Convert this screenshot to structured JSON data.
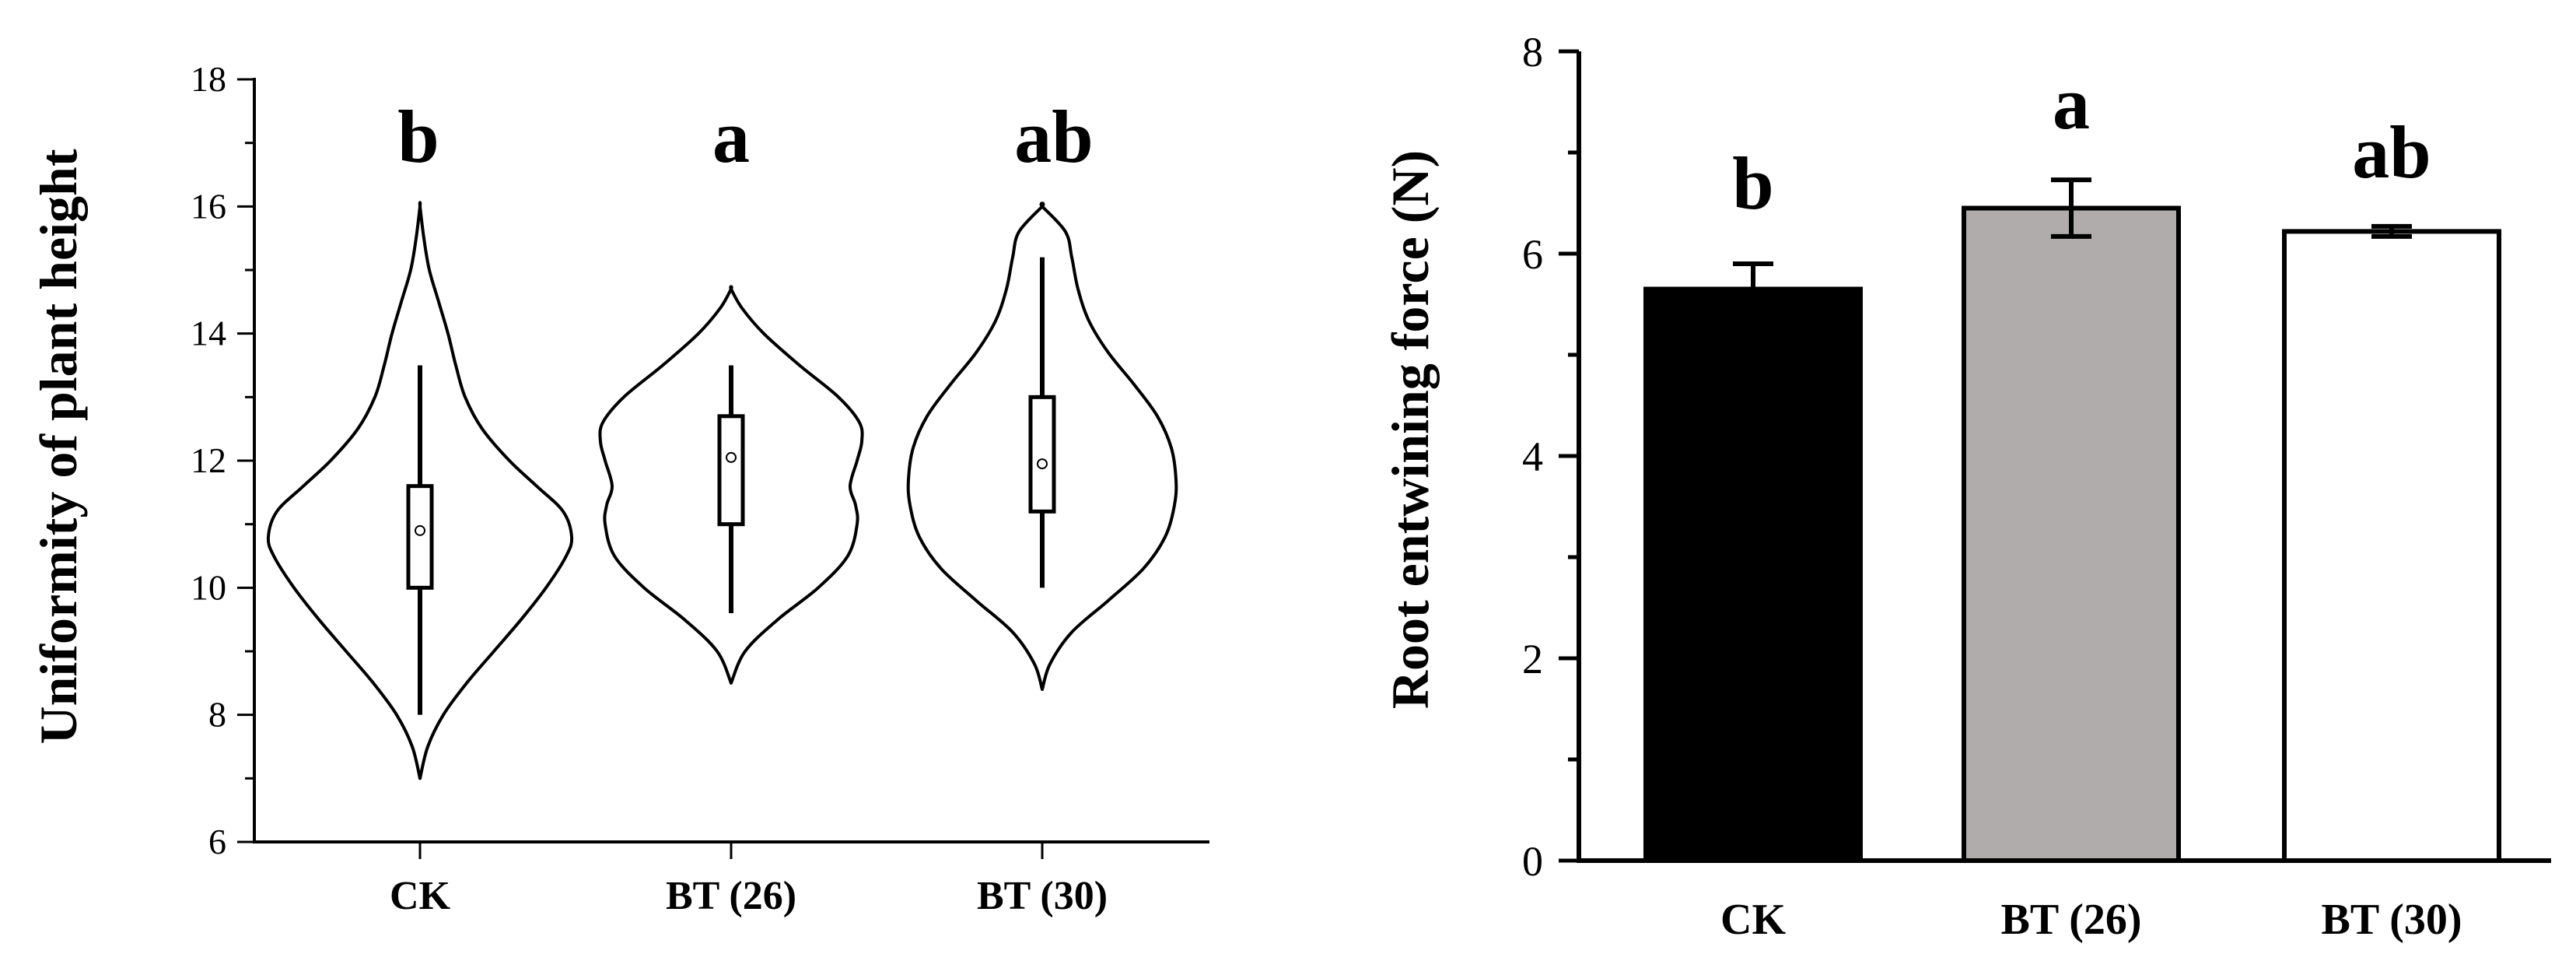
{
  "chart_data": [
    {
      "type": "violin",
      "ylabel": "Uniformity of plant height",
      "xlabel": "",
      "ylim": [
        6,
        18
      ],
      "yticks": [
        6,
        8,
        10,
        12,
        14,
        16,
        18
      ],
      "categories": [
        "CK",
        "BT (26)",
        "BT (30)"
      ],
      "significance": [
        "b",
        "a",
        "ab"
      ],
      "distributions": [
        {
          "name": "CK",
          "min": 7.0,
          "max": 16.0,
          "whisker_low": 8.0,
          "whisker_high": 13.5,
          "q1": 10.0,
          "q3": 11.6,
          "mean": 10.9
        },
        {
          "name": "BT (26)",
          "min": 8.5,
          "max": 14.7,
          "whisker_low": 9.6,
          "whisker_high": 13.5,
          "q1": 11.0,
          "q3": 12.7,
          "mean": 12.05
        },
        {
          "name": "BT (30)",
          "min": 8.4,
          "max": 16.0,
          "whisker_low": 10.0,
          "whisker_high": 15.2,
          "q1": 11.2,
          "q3": 13.0,
          "mean": 11.95
        }
      ]
    },
    {
      "type": "bar",
      "ylabel": "Root entwining force (N)",
      "xlabel": "",
      "ylim": [
        0,
        8
      ],
      "yticks": [
        0,
        2,
        4,
        6,
        8
      ],
      "categories": [
        "CK",
        "BT (26)",
        "BT (30)"
      ],
      "values": [
        5.65,
        6.45,
        6.22
      ],
      "errors": [
        0.25,
        0.28,
        0.05
      ],
      "significance": [
        "b",
        "a",
        "ab"
      ],
      "colors": [
        "#000000",
        "#b0acab",
        "#ffffff"
      ]
    }
  ]
}
